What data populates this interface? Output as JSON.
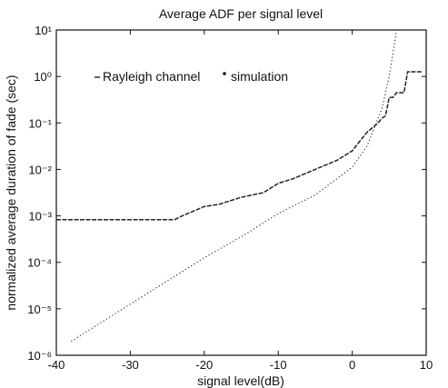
{
  "chart_data": {
    "type": "line",
    "title": "Average ADF per signal level",
    "xlabel": "signal level(dB)",
    "ylabel": "normalized average duration of fade (sec)",
    "xlim": [
      -40,
      10
    ],
    "ylim_exp": [
      -6,
      1
    ],
    "y_scale": "log",
    "grid": false,
    "legend_position": "top-left",
    "x_ticks": [
      -40,
      -30,
      -20,
      -10,
      0,
      10
    ],
    "x_tick_labels": [
      "-40",
      "-30",
      "-20",
      "-10",
      "0",
      "10"
    ],
    "y_tick_exponents": [
      1,
      0,
      -1,
      -2,
      -3,
      -4,
      -5,
      -6
    ],
    "y_tick_labels": [
      "10¹",
      "10⁰",
      "10⁻¹",
      "10⁻²",
      "10⁻³",
      "10⁻⁴",
      "10⁻⁵",
      "10⁻⁶"
    ],
    "legend": [
      "Rayleigh channel",
      "simulation"
    ],
    "series": [
      {
        "name": "Rayleigh channel",
        "style": "dotted",
        "x": [
          -38,
          -35,
          -30,
          -25,
          -20,
          -15,
          -10,
          -5,
          0,
          2,
          4,
          5,
          6
        ],
        "y_log10": [
          -5.7,
          -5.4,
          -4.9,
          -4.4,
          -3.9,
          -3.45,
          -2.95,
          -2.55,
          -1.95,
          -1.5,
          -0.7,
          0.0,
          1.0
        ]
      },
      {
        "name": "simulation",
        "style": "dashed",
        "x": [
          -40,
          -35,
          -30,
          -25,
          -24,
          -23,
          -20,
          -18,
          -15,
          -12,
          -10,
          -8,
          -5,
          -2,
          0,
          2,
          3.5,
          4,
          4.5,
          5,
          5.5,
          6,
          7,
          7.5,
          9.5
        ],
        "y_log10": [
          -3.08,
          -3.08,
          -3.08,
          -3.08,
          -3.08,
          -3.0,
          -2.8,
          -2.75,
          -2.6,
          -2.5,
          -2.3,
          -2.2,
          -2.0,
          -1.8,
          -1.6,
          -1.2,
          -1.0,
          -0.9,
          -0.85,
          -0.45,
          -0.45,
          -0.35,
          -0.35,
          0.1,
          0.1
        ]
      }
    ]
  }
}
